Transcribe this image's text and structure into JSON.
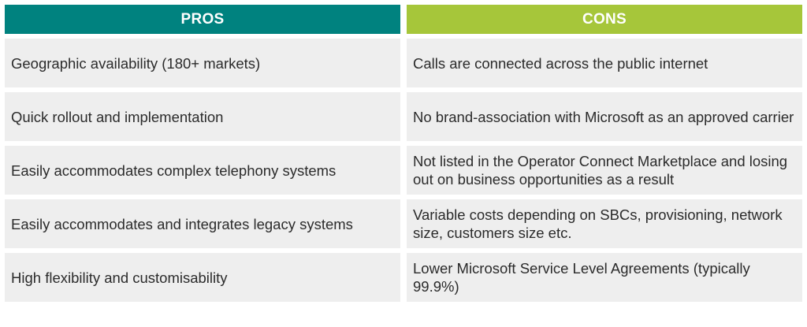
{
  "headers": {
    "pros": "PROS",
    "cons": "CONS"
  },
  "rows": [
    {
      "pro": "Geographic availability (180+ markets)",
      "con": "Calls are connected across the public internet"
    },
    {
      "pro": "Quick rollout and implementation",
      "con": "No brand-association with Microsoft as an approved carrier"
    },
    {
      "pro": "Easily accommodates complex telephony systems",
      "con": "Not listed in the Operator Connect Marketplace and losing out on business opportunities as a result"
    },
    {
      "pro": "Easily accommodates and integrates legacy systems",
      "con": "Variable costs depending on SBCs, provisioning, network size, customers size etc."
    },
    {
      "pro": "High flexibility and customisability",
      "con": "Lower Microsoft Service Level Agreements (typically 99.9%)"
    }
  ],
  "colors": {
    "pros_header": "#00827f",
    "cons_header": "#a6c63a",
    "cell_background": "#eeeeee",
    "text": "#2b2b2b"
  }
}
